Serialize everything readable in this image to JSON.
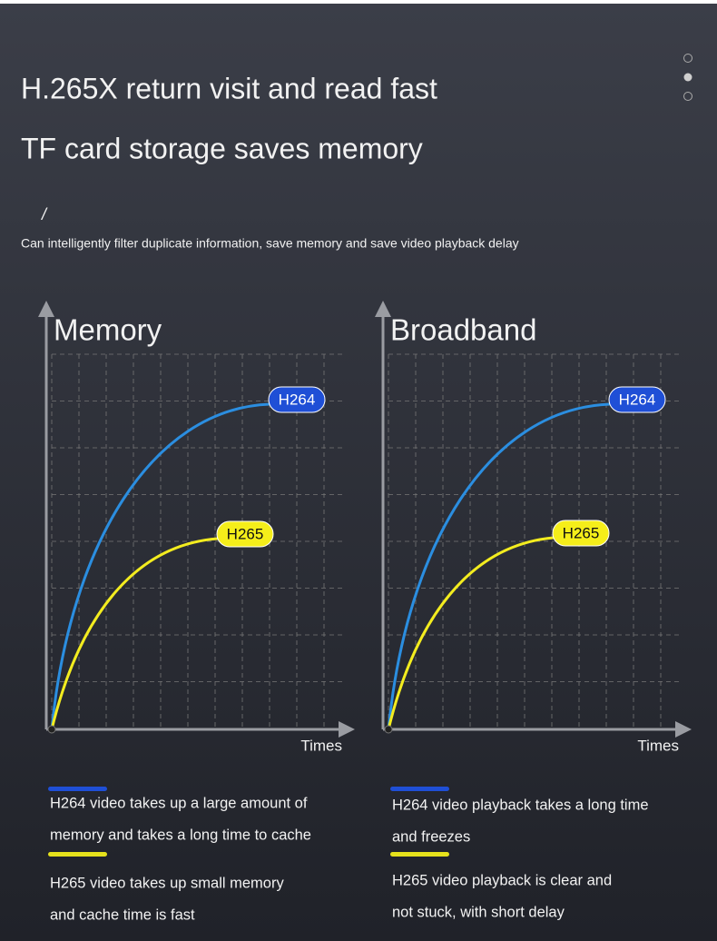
{
  "header": {
    "title_line1": "H.265X return visit and read fast",
    "title_line2": "TF card storage saves memory",
    "mark": "/",
    "subtitle": "Can intelligently filter duplicate information, save memory and save video playback delay"
  },
  "panels": [
    {
      "title": "Memory",
      "x_label": "Times",
      "labels": [
        "H264",
        "H265"
      ],
      "notes": [
        [
          "H264 video takes up a large amount of",
          "memory and takes a long time to cache"
        ],
        [
          "H265 video takes up small memory",
          "and cache time is fast"
        ]
      ]
    },
    {
      "title": "Broadband",
      "x_label": "Times",
      "labels": [
        "H264",
        "H265"
      ],
      "notes": [
        [
          "H264 video playback takes a long time",
          "and freezes"
        ],
        [
          "H265 video playback is clear and",
          "not stuck, with short delay"
        ]
      ]
    }
  ]
}
